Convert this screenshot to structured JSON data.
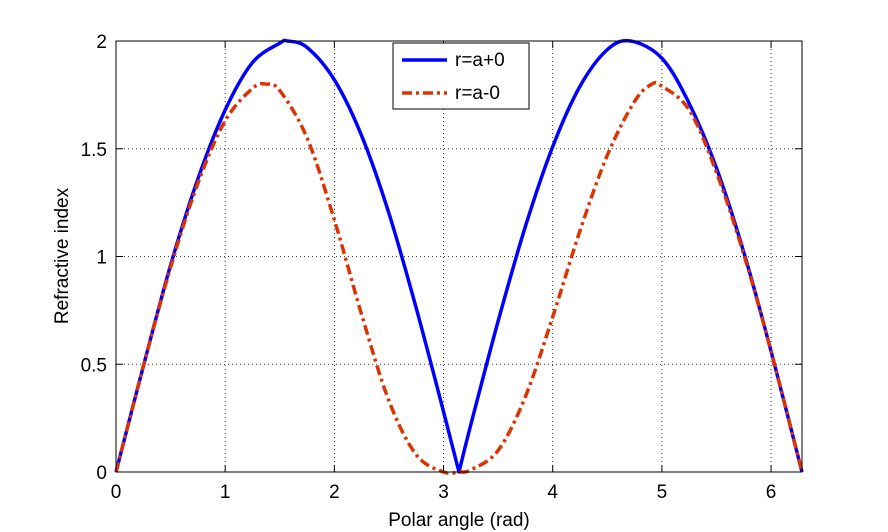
{
  "chart_data": {
    "type": "line",
    "title": "",
    "xlabel": "Polar angle (rad)",
    "ylabel": "Refractive index",
    "xlim": [
      0,
      6.2832
    ],
    "ylim": [
      0,
      2
    ],
    "grid": true,
    "legend_position": "top-center",
    "xticks": [
      {
        "value": 0,
        "label": "0"
      },
      {
        "value": 1,
        "label": "1"
      },
      {
        "value": 2,
        "label": "2"
      },
      {
        "value": 3,
        "label": "3"
      },
      {
        "value": 4,
        "label": "4"
      },
      {
        "value": 5,
        "label": "5"
      },
      {
        "value": 6,
        "label": "6"
      }
    ],
    "yticks": [
      {
        "value": 0,
        "label": "0"
      },
      {
        "value": 0.5,
        "label": "0.5"
      },
      {
        "value": 1,
        "label": "1"
      },
      {
        "value": 1.5,
        "label": "1.5"
      },
      {
        "value": 2,
        "label": "2"
      }
    ],
    "series": [
      {
        "name": "r=a+0",
        "color": "#0000ff",
        "line_style": "solid",
        "x": [
          0,
          0.25,
          0.5,
          0.75,
          1.0,
          1.25,
          1.5,
          1.5708,
          1.75,
          2.0,
          2.25,
          2.5,
          2.75,
          3.0,
          3.1416,
          3.25,
          3.5,
          3.75,
          4.0,
          4.25,
          4.5,
          4.7124,
          5.0,
          5.25,
          5.5,
          5.75,
          6.0,
          6.2832
        ],
        "y": [
          0,
          0.49,
          0.96,
          1.36,
          1.68,
          1.9,
          1.99,
          2.0,
          1.97,
          1.82,
          1.56,
          1.2,
          0.76,
          0.28,
          0.0,
          0.22,
          0.7,
          1.14,
          1.51,
          1.79,
          1.96,
          2.0,
          1.92,
          1.71,
          1.41,
          1.02,
          0.56,
          0.0
        ]
      },
      {
        "name": "r=a-0",
        "color": "#dd3300",
        "line_style": "dash-dot",
        "x": [
          0,
          0.25,
          0.5,
          0.75,
          1.0,
          1.25,
          1.3744,
          1.5,
          1.75,
          2.0,
          2.25,
          2.5,
          2.75,
          3.0,
          3.1416,
          3.25,
          3.5,
          3.75,
          4.0,
          4.25,
          4.5,
          4.75,
          4.9088,
          5.0,
          5.25,
          5.5,
          5.75,
          6.0,
          6.2832
        ],
        "y": [
          0,
          0.49,
          0.95,
          1.34,
          1.63,
          1.78,
          1.8,
          1.77,
          1.55,
          1.17,
          0.73,
          0.33,
          0.08,
          0.0,
          0.0,
          0.01,
          0.1,
          0.35,
          0.72,
          1.12,
          1.47,
          1.72,
          1.8,
          1.79,
          1.68,
          1.39,
          1.01,
          0.56,
          0.0
        ]
      }
    ]
  }
}
